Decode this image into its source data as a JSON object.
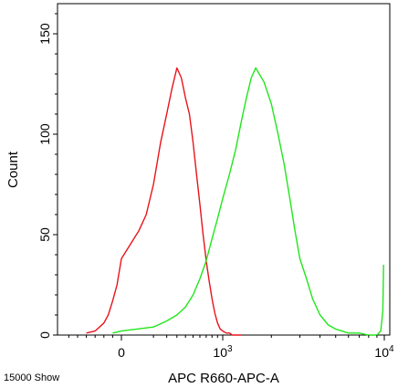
{
  "chart_data": {
    "type": "line",
    "title": "",
    "xlabel": "APC R660-APC-A",
    "ylabel": "Count",
    "footer_note": "15000 Show",
    "xscale": "biexponential",
    "xlim": [
      -700,
      10000
    ],
    "ylim": [
      0,
      165
    ],
    "y_ticks": [
      0,
      50,
      100,
      150
    ],
    "x_tick_labels": [
      {
        "value": 0,
        "base": "0",
        "exp": ""
      },
      {
        "value": 1000,
        "base": "10",
        "exp": "3"
      },
      {
        "value": 10000,
        "base": "10",
        "exp": "4"
      }
    ],
    "grid": false,
    "legend": "none",
    "series": [
      {
        "color": "#e8141b",
        "x": [
          -400,
          -300,
          -200,
          -150,
          -100,
          -50,
          0,
          30,
          60,
          100,
          150,
          200,
          250,
          300,
          350,
          400,
          450,
          500,
          550,
          600,
          650,
          700,
          750,
          800,
          850,
          900,
          950,
          1000,
          1050,
          1100,
          1150,
          1200,
          1300
        ],
        "y": [
          1,
          2,
          6,
          10,
          17,
          25,
          38,
          52,
          60,
          75,
          96,
          110,
          123,
          133,
          128,
          118,
          110,
          96,
          80,
          65,
          50,
          37,
          27,
          18,
          11,
          6,
          3,
          2,
          1,
          1,
          0,
          0,
          0
        ]
      },
      {
        "color": "#22e61c",
        "x": [
          -100,
          0,
          100,
          200,
          300,
          400,
          500,
          600,
          700,
          800,
          900,
          1000,
          1100,
          1200,
          1300,
          1400,
          1500,
          1600,
          1800,
          2000,
          2200,
          2400,
          2600,
          2800,
          3000,
          3300,
          3600,
          4000,
          4500,
          5000,
          6000,
          7000,
          8000,
          9000,
          9500,
          9800,
          9900
        ],
        "y": [
          1,
          2,
          4,
          7,
          10,
          14,
          20,
          28,
          37,
          48,
          58,
          68,
          80,
          92,
          106,
          118,
          128,
          133,
          126,
          115,
          100,
          85,
          68,
          52,
          38,
          28,
          18,
          10,
          5,
          3,
          1,
          1,
          0,
          0,
          2,
          12,
          35
        ]
      }
    ]
  }
}
